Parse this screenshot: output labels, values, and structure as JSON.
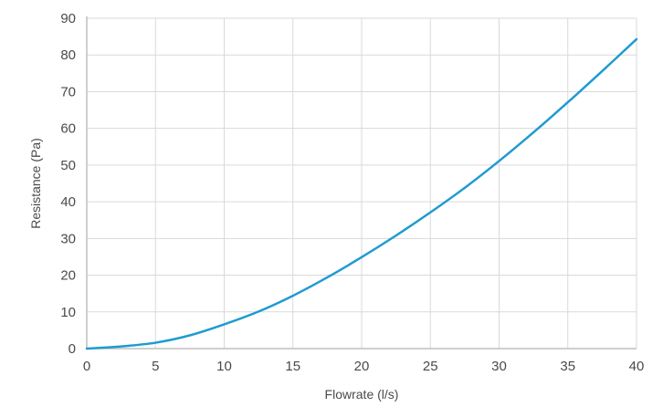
{
  "chart_data": {
    "type": "line",
    "title": "",
    "xlabel": "Flowrate (l/s)",
    "ylabel": "Resistance (Pa)",
    "xlim": [
      0,
      40
    ],
    "ylim": [
      0,
      90
    ],
    "x_ticks": [
      0,
      5,
      10,
      15,
      20,
      25,
      30,
      35,
      40
    ],
    "y_ticks": [
      0,
      10,
      20,
      30,
      40,
      50,
      60,
      70,
      80,
      90
    ],
    "grid": true,
    "legend": "none",
    "colors": {
      "line": "#1f9bd1",
      "grid": "#d9d9d9",
      "axis": "#bfbfbf"
    },
    "series": [
      {
        "x": [
          0,
          2.5,
          5,
          7.5,
          10,
          12.5,
          15,
          17.5,
          20,
          22.5,
          25,
          27.5,
          30,
          32.5,
          35,
          37.5,
          40
        ],
        "values": [
          0,
          0.6,
          1.6,
          3.6,
          6.6,
          10.1,
          14.4,
          19.4,
          24.9,
          30.8,
          37.1,
          43.8,
          51.1,
          58.9,
          67.1,
          75.6,
          84.3
        ]
      }
    ]
  }
}
